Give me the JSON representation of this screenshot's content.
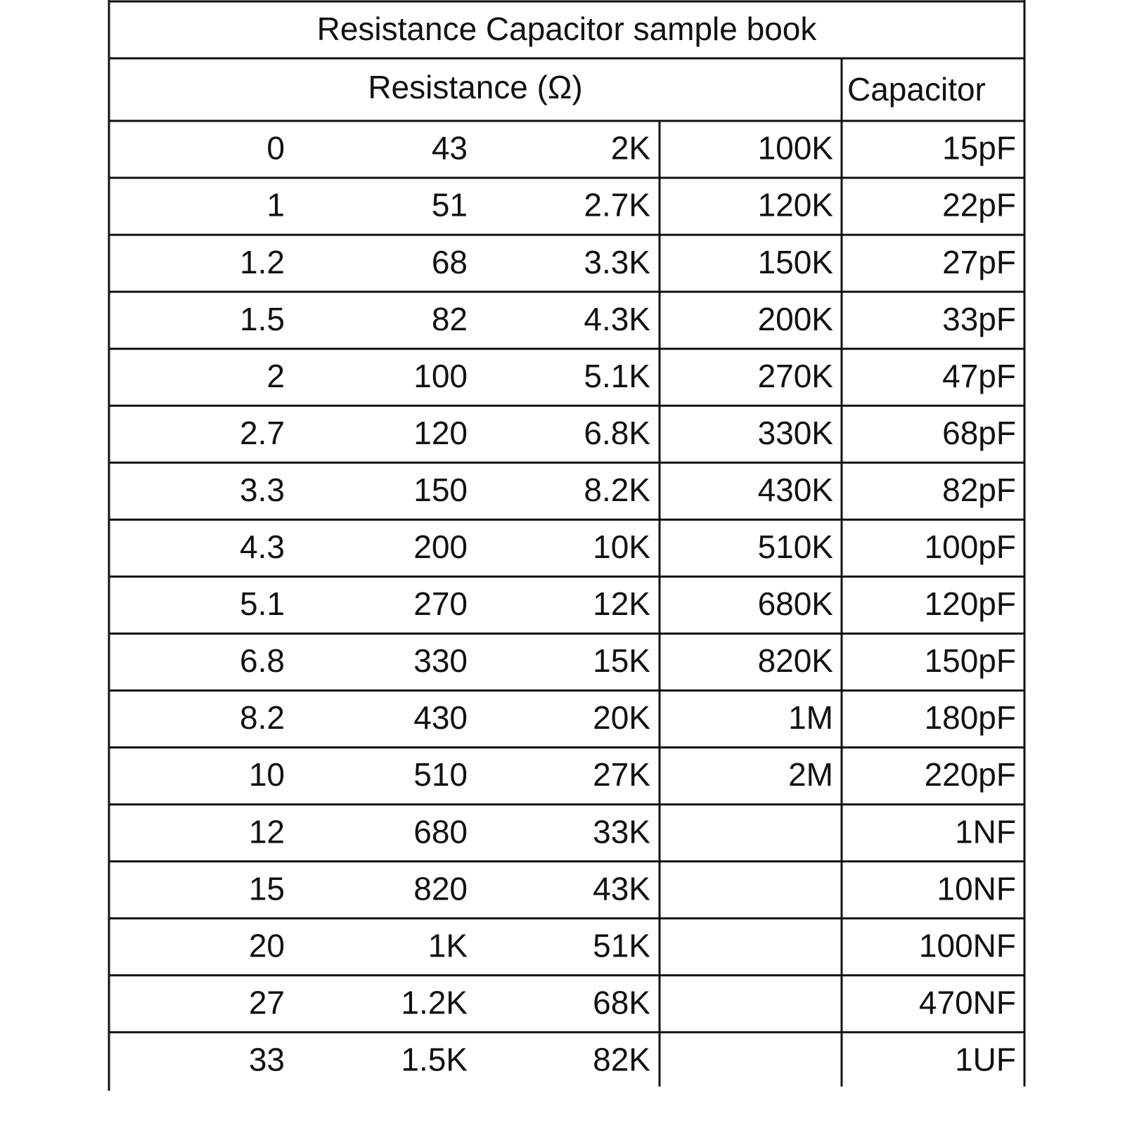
{
  "table": {
    "title": "Resistance Capacitor sample book",
    "headers": [
      "Resistance (Ω)",
      "Capacitor"
    ],
    "rows": [
      [
        "0",
        "43",
        "2K",
        "100K",
        "15pF"
      ],
      [
        "1",
        "51",
        "2.7K",
        "120K",
        "22pF"
      ],
      [
        "1.2",
        "68",
        "3.3K",
        "150K",
        "27pF"
      ],
      [
        "1.5",
        "82",
        "4.3K",
        "200K",
        "33pF"
      ],
      [
        "2",
        "100",
        "5.1K",
        "270K",
        "47pF"
      ],
      [
        "2.7",
        "120",
        "6.8K",
        "330K",
        "68pF"
      ],
      [
        "3.3",
        "150",
        "8.2K",
        "430K",
        "82pF"
      ],
      [
        "4.3",
        "200",
        "10K",
        "510K",
        "100pF"
      ],
      [
        "5.1",
        "270",
        "12K",
        "680K",
        "120pF"
      ],
      [
        "6.8",
        "330",
        "15K",
        "820K",
        "150pF"
      ],
      [
        "8.2",
        "430",
        "20K",
        "1M",
        "180pF"
      ],
      [
        "10",
        "510",
        "27K",
        "2M",
        "220pF"
      ],
      [
        "12",
        "680",
        "33K",
        null,
        "1NF"
      ],
      [
        "15",
        "820",
        "43K",
        null,
        "10NF"
      ],
      [
        "20",
        "1K",
        "51K",
        null,
        "100NF"
      ],
      [
        "27",
        "1.2K",
        "68K",
        null,
        "470NF"
      ],
      [
        "33",
        "1.5K",
        "82K",
        null,
        "1UF"
      ]
    ]
  }
}
